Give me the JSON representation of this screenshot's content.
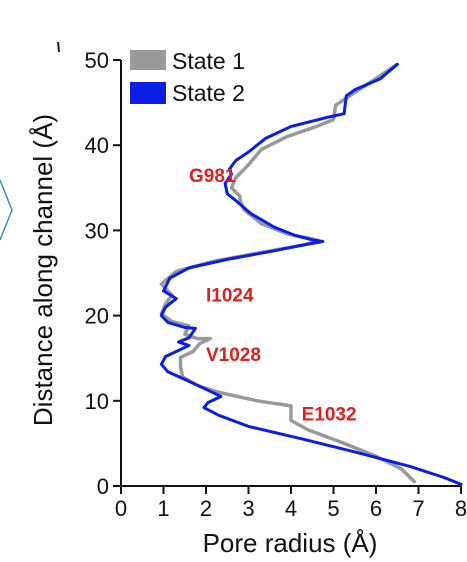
{
  "chart_data": {
    "type": "line",
    "title": "",
    "xlabel": "Pore radius (Å)",
    "ylabel": "Distance along channel (Å)",
    "xlim": [
      0,
      8
    ],
    "ylim": [
      0,
      50
    ],
    "xticks": [
      "0",
      "1",
      "2",
      "3",
      "4",
      "5",
      "6",
      "7",
      "8"
    ],
    "yticks": [
      "0",
      "10",
      "20",
      "30",
      "40",
      "50"
    ],
    "grid": false,
    "legend_position": "top-left",
    "series": [
      {
        "name": "State 1",
        "color": "#999999",
        "points": [
          [
            6.5,
            49.5
          ],
          [
            5.6,
            46.5
          ],
          [
            5.05,
            44.7
          ],
          [
            5.0,
            43.0
          ],
          [
            4.6,
            42.2
          ],
          [
            3.9,
            41.0
          ],
          [
            3.3,
            39.5
          ],
          [
            3.0,
            37.7
          ],
          [
            2.7,
            36.2
          ],
          [
            2.6,
            35.0
          ],
          [
            2.8,
            34.0
          ],
          [
            2.8,
            33.5
          ],
          [
            2.9,
            32.4
          ],
          [
            3.3,
            30.8
          ],
          [
            3.9,
            29.6
          ],
          [
            4.5,
            29.0
          ],
          [
            4.65,
            28.8
          ],
          [
            4.3,
            28.3
          ],
          [
            3.4,
            27.5
          ],
          [
            2.2,
            26.4
          ],
          [
            1.3,
            25.2
          ],
          [
            0.95,
            23.7
          ],
          [
            1.2,
            22.4
          ],
          [
            1.05,
            21.4
          ],
          [
            0.95,
            20.2
          ],
          [
            1.2,
            19.3
          ],
          [
            1.6,
            18.8
          ],
          [
            1.5,
            17.8
          ],
          [
            1.8,
            17.3
          ],
          [
            2.1,
            17.3
          ],
          [
            1.85,
            16.7
          ],
          [
            1.7,
            15.8
          ],
          [
            1.4,
            15.1
          ],
          [
            1.4,
            14.0
          ],
          [
            1.45,
            12.8
          ],
          [
            1.8,
            11.8
          ],
          [
            2.3,
            11.0
          ],
          [
            3.2,
            10.0
          ],
          [
            4.0,
            9.4
          ],
          [
            4.0,
            7.7
          ],
          [
            4.4,
            6.6
          ],
          [
            5.2,
            5.1
          ],
          [
            6.0,
            3.5
          ],
          [
            6.6,
            2.0
          ],
          [
            6.9,
            0.5
          ]
        ]
      },
      {
        "name": "State 2",
        "color": "#0a1ee6",
        "points": [
          [
            6.5,
            49.5
          ],
          [
            6.1,
            47.8
          ],
          [
            5.5,
            46.5
          ],
          [
            5.3,
            45.8
          ],
          [
            5.25,
            43.7
          ],
          [
            4.8,
            43.2
          ],
          [
            4.0,
            42.2
          ],
          [
            3.4,
            40.8
          ],
          [
            3.0,
            39.2
          ],
          [
            2.7,
            38.2
          ],
          [
            2.55,
            37.2
          ],
          [
            2.6,
            36.6
          ],
          [
            2.45,
            35.5
          ],
          [
            2.5,
            34.3
          ],
          [
            2.7,
            33.5
          ],
          [
            3.05,
            32.0
          ],
          [
            3.6,
            30.4
          ],
          [
            4.1,
            29.4
          ],
          [
            4.5,
            28.9
          ],
          [
            4.75,
            28.7
          ],
          [
            4.3,
            28.3
          ],
          [
            3.6,
            27.6
          ],
          [
            2.5,
            26.6
          ],
          [
            1.6,
            25.6
          ],
          [
            1.15,
            24.4
          ],
          [
            1.0,
            22.9
          ],
          [
            1.3,
            22.0
          ],
          [
            1.05,
            21.0
          ],
          [
            0.95,
            20.0
          ],
          [
            1.1,
            19.2
          ],
          [
            1.5,
            18.6
          ],
          [
            1.75,
            18.5
          ],
          [
            1.6,
            17.4
          ],
          [
            1.35,
            16.9
          ],
          [
            1.6,
            16.5
          ],
          [
            1.35,
            15.9
          ],
          [
            1.05,
            15.2
          ],
          [
            0.95,
            14.3
          ],
          [
            1.1,
            13.4
          ],
          [
            1.55,
            12.4
          ],
          [
            2.15,
            11.0
          ],
          [
            2.35,
            10.5
          ],
          [
            2.05,
            9.8
          ],
          [
            1.95,
            9.2
          ],
          [
            2.3,
            8.3
          ],
          [
            3.0,
            7.0
          ],
          [
            4.2,
            5.6
          ],
          [
            5.5,
            4.0
          ],
          [
            6.8,
            2.3
          ],
          [
            7.6,
            1.0
          ],
          [
            8.0,
            0.2
          ]
        ]
      }
    ],
    "annotations": [
      {
        "text": "G981",
        "x": 1.6,
        "y": 36.5,
        "color": "#e01f1f"
      },
      {
        "text": "I1024",
        "x": 2.0,
        "y": 22.5,
        "color": "#e01f1f"
      },
      {
        "text": "V1028",
        "x": 2.0,
        "y": 15.5,
        "color": "#e01f1f"
      },
      {
        "text": "E1032",
        "x": 4.25,
        "y": 8.5,
        "color": "#e01f1f"
      }
    ]
  }
}
